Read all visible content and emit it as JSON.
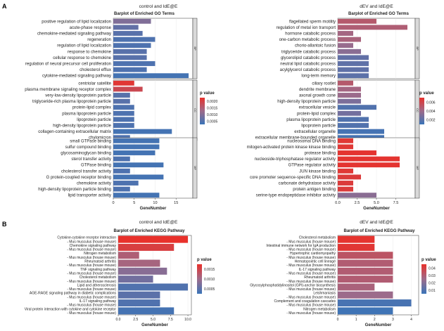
{
  "panel_letters": [
    "A",
    "B"
  ],
  "colors": {
    "low_p": "#3a74b8",
    "mid_p": "#9e6b8a",
    "high_p": "#e8312b",
    "strip": "#d9d9d9",
    "frame": "#333333"
  },
  "chart_data": [
    {
      "id": "go_control",
      "type": "bar",
      "group_title": "control and IdE@E",
      "title": "Barplot of Enriched GO Terms",
      "xlabel": "GeneNumber",
      "xlim": [
        0,
        19
      ],
      "xticks": [
        0,
        5,
        10,
        15
      ],
      "legend": {
        "title": "p value",
        "ticks": [
          "0.0020",
          "0.0015",
          "0.0010",
          "0.0005"
        ],
        "pmin": 0.0002,
        "pmax": 0.0022
      },
      "facets": [
        {
          "label": "BP",
          "terms": [
            {
              "name": "positive regulation of lipid localization",
              "count": 9,
              "p": 0.0009
            },
            {
              "name": "acute-phase response",
              "count": 6,
              "p": 0.0006
            },
            {
              "name": "chemokine-mediated signaling pathway",
              "count": 7,
              "p": 0.0005
            },
            {
              "name": "regeneration",
              "count": 10,
              "p": 0.0004
            },
            {
              "name": "regulation of lipid localization",
              "count": 9,
              "p": 0.0004
            },
            {
              "name": "response to chemokine",
              "count": 8,
              "p": 0.0005
            },
            {
              "name": "cellular response to chemokine",
              "count": 8,
              "p": 0.0005
            },
            {
              "name": "regulation of neural precursor cell proliferation",
              "count": 10,
              "p": 0.0004
            },
            {
              "name": "cholesterol efflux",
              "count": 8,
              "p": 0.0004
            },
            {
              "name": "cytokine-mediated signaling pathway",
              "count": 18,
              "p": 0.0003
            }
          ]
        },
        {
          "label": "CC",
          "terms": [
            {
              "name": "centriolar satellite",
              "count": 5,
              "p": 0.0021
            },
            {
              "name": "plasma membrane signaling receptor complex",
              "count": 7,
              "p": 0.0018
            },
            {
              "name": "very-low-density lipoprotein particle",
              "count": 4,
              "p": 0.0005
            },
            {
              "name": "triglyceride-rich plasma lipoprotein particle",
              "count": 4,
              "p": 0.0005
            },
            {
              "name": "protein-lipid complex",
              "count": 5,
              "p": 0.0004
            },
            {
              "name": "plasma lipoprotein particle",
              "count": 5,
              "p": 0.0004
            },
            {
              "name": "lipoprotein particle",
              "count": 5,
              "p": 0.0004
            },
            {
              "name": "high-density lipoprotein particle",
              "count": 5,
              "p": 0.0004
            },
            {
              "name": "collagen-containing extracellular matrix",
              "count": 14,
              "p": 0.0003
            },
            {
              "name": "chylomicron",
              "count": 4,
              "p": 0.0004
            }
          ]
        },
        {
          "label": "MF",
          "terms": [
            {
              "name": "small GTPase binding",
              "count": 11,
              "p": 0.0003
            },
            {
              "name": "sulfur compound binding",
              "count": 11,
              "p": 0.0003
            },
            {
              "name": "glycosaminoglycan binding",
              "count": 10,
              "p": 0.0003
            },
            {
              "name": "sterol transfer activity",
              "count": 4,
              "p": 0.0004
            },
            {
              "name": "GTPase binding",
              "count": 12,
              "p": 0.0003
            },
            {
              "name": "cholesterol transfer activity",
              "count": 4,
              "p": 0.0004
            },
            {
              "name": "G protein-coupled receptor binding",
              "count": 12,
              "p": 0.0003
            },
            {
              "name": "chemokine activity",
              "count": 6,
              "p": 0.0004
            },
            {
              "name": "high-density lipoprotein particle binding",
              "count": 4,
              "p": 0.0004
            },
            {
              "name": "lipid transporter activity",
              "count": 11,
              "p": 0.0003
            }
          ]
        }
      ]
    },
    {
      "id": "go_dev",
      "type": "bar",
      "group_title": "dEV and IdE@E",
      "title": "Barplot of Enriched GO Terms",
      "xlabel": "GeneNumber",
      "xlim": [
        0,
        10
      ],
      "xticks": [
        0.0,
        2.5,
        5.0,
        7.5
      ],
      "legend": {
        "title": "p value",
        "ticks": [
          "0.006",
          "0.004",
          "0.002"
        ],
        "pmin": 0.0002,
        "pmax": 0.0072
      },
      "facets": [
        {
          "label": "BP",
          "terms": [
            {
              "name": "flagellated sperm motility",
              "count": 5,
              "p": 0.0048
            },
            {
              "name": "regulation of metal ion transport",
              "count": 9,
              "p": 0.0045
            },
            {
              "name": "hormone catabolic process",
              "count": 2,
              "p": 0.004
            },
            {
              "name": "one-carbon metabolic process",
              "count": 3,
              "p": 0.0042
            },
            {
              "name": "chorio-allantoic fusion",
              "count": 2,
              "p": 0.0035
            },
            {
              "name": "triglyceride catabolic process",
              "count": 3,
              "p": 0.003
            },
            {
              "name": "glycerolipid catabolic process",
              "count": 4,
              "p": 0.0016
            },
            {
              "name": "neutral lipid catabolic process",
              "count": 4,
              "p": 0.0015
            },
            {
              "name": "acylglycerol catabolic process",
              "count": 4,
              "p": 0.0015
            },
            {
              "name": "long-term memory",
              "count": 4,
              "p": 0.0014
            }
          ]
        },
        {
          "label": "CC",
          "terms": [
            {
              "name": "ciliary rootlet",
              "count": 2,
              "p": 0.0048
            },
            {
              "name": "dendrite membrane",
              "count": 3,
              "p": 0.004
            },
            {
              "name": "axonal growth cone",
              "count": 3,
              "p": 0.0036
            },
            {
              "name": "high-density lipoprotein particle",
              "count": 3,
              "p": 0.0025
            },
            {
              "name": "extracellular vesicle",
              "count": 5,
              "p": 0.001
            },
            {
              "name": "protein-lipid complex",
              "count": 3,
              "p": 0.0022
            },
            {
              "name": "plasma lipoprotein particle",
              "count": 4,
              "p": 0.001
            },
            {
              "name": "lipoprotein particle",
              "count": 4,
              "p": 0.001
            },
            {
              "name": "extracellular organelle",
              "count": 6,
              "p": 0.0006
            },
            {
              "name": "extracellular membrane-bounded organelle",
              "count": 6,
              "p": 0.0006
            }
          ]
        },
        {
          "label": "MF",
          "terms": [
            {
              "name": "nucleosomal DNA binding",
              "count": 2,
              "p": 0.0068
            },
            {
              "name": "mitogen-activated protein kinase kinase binding",
              "count": 2,
              "p": 0.0068
            },
            {
              "name": "protease binding",
              "count": 5,
              "p": 0.007
            },
            {
              "name": "nucleoside-triphosphatase regulator activity",
              "count": 8,
              "p": 0.007
            },
            {
              "name": "GTPase regulator activity",
              "count": 8,
              "p": 0.007
            },
            {
              "name": "JUN kinase binding",
              "count": 2,
              "p": 0.0068
            },
            {
              "name": "core promoter sequence-specific DNA binding",
              "count": 3,
              "p": 0.0066
            },
            {
              "name": "carbonate dehydratase activity",
              "count": 2,
              "p": 0.0066
            },
            {
              "name": "protein antigen binding",
              "count": 2,
              "p": 0.0066
            },
            {
              "name": "serine-type endopeptidase inhibitor activity",
              "count": 5,
              "p": 0.003
            }
          ]
        }
      ]
    },
    {
      "id": "kegg_control",
      "type": "bar",
      "group_title": "control and IdE@E",
      "title": "Barplot of Enriched KEGG Pathway",
      "xlabel": "GeneNumber",
      "xlim": [
        0,
        10.5
      ],
      "xticks": [
        0.0,
        2.5,
        5.0,
        7.5,
        10.0
      ],
      "legend": {
        "title": "p value",
        "ticks": [
          "0.0015",
          "0.0010",
          "0.0005"
        ],
        "pmin": 0.0001,
        "pmax": 0.0019
      },
      "terms": [
        {
          "name": "Cytokine-cytokine receptor interaction",
          "count": 10,
          "p": 0.0019
        },
        {
          "name": "Chemokine signaling pathway",
          "count": 8,
          "p": 0.0017
        },
        {
          "name": "Nitrogen metabolism",
          "count": 3,
          "p": 0.0012
        },
        {
          "name": "Rheumatoid arthritis",
          "count": 6,
          "p": 0.0011
        },
        {
          "name": "TNF signaling pathway",
          "count": 7,
          "p": 0.0008
        },
        {
          "name": "Cholesterol metabolism",
          "count": 5,
          "p": 0.0006
        },
        {
          "name": "Lipid and atherosclerosis",
          "count": 10,
          "p": 0.0003
        },
        {
          "name": "AGE-RAGE signaling pathway in diabetic complications",
          "count": 6,
          "p": 0.0004
        },
        {
          "name": "IL-17 signaling pathway",
          "count": 6,
          "p": 0.0003
        },
        {
          "name": "Viral protein interaction with cytokine and cytokine receptor",
          "count": 8,
          "p": 0.0002
        }
      ],
      "tick_labels": [
        "Cytokine-cytokine receptor interaction",
        "- Mus musculus (house mouse)",
        "Chemokine signaling pathway",
        "- Mus musculus (house mouse)",
        "Nitrogen metabolism",
        "- Mus musculus (house mouse)",
        "Rheumatoid arthritis",
        "- Mus musculus (house mouse)",
        "TNF signaling pathway",
        "- Mus musculus (house mouse)",
        "Cholesterol metabolism",
        "- Mus musculus (house mouse)",
        "Lipid and atherosclerosis",
        "- Mus musculus (house mouse)",
        "AGE-RAGE signaling pathway in diabetic complications",
        "- Mus musculus (house mouse)",
        "IL-17 signaling pathway",
        "- Mus musculus (house mouse)",
        "Viral protein interaction with cytokine and cytokine receptor",
        "- Mus musculus (house mouse)"
      ]
    },
    {
      "id": "kegg_dev",
      "type": "bar",
      "group_title": "dEV and IdE@E",
      "title": "Barplot of Enriched KEGG Pathway",
      "xlabel": "GeneNumber",
      "xlim": [
        0,
        4.4
      ],
      "xticks": [
        0,
        1,
        2,
        3,
        4
      ],
      "legend": {
        "title": "p value",
        "ticks": [
          "0.04",
          "0.03",
          "0.02",
          "0.01"
        ],
        "pmin": 0.003,
        "pmax": 0.046
      },
      "terms": [
        {
          "name": "Cholesterol metabolism",
          "count": 2,
          "p": 0.045
        },
        {
          "name": "Intestinal immune network for IgA production",
          "count": 2,
          "p": 0.044
        },
        {
          "name": "Hypertrophic cardiomyopathy",
          "count": 3,
          "p": 0.033
        },
        {
          "name": "Hematopoietic cell lineage",
          "count": 3,
          "p": 0.03
        },
        {
          "name": "IL-17 signaling pathway",
          "count": 3,
          "p": 0.03
        },
        {
          "name": "Rheumatoid arthritis",
          "count": 3,
          "p": 0.03
        },
        {
          "name": "Glycosylphosphatidylinositol (GPI)-anchor biosynthesis",
          "count": 2,
          "p": 0.028
        },
        {
          "name": "Leishmaniasis",
          "count": 3,
          "p": 0.024
        },
        {
          "name": "Complement and coagulation cascades",
          "count": 4,
          "p": 0.006
        },
        {
          "name": "Nitrogen metabolism",
          "count": 3,
          "p": 0.004
        }
      ],
      "tick_labels": [
        "Cholesterol metabolism",
        "- Mus musculus (house mouse)",
        "Intestinal immune network for IgA production",
        "- Mus musculus (house mouse)",
        "Hypertrophic cardiomyopathy",
        "- Mus musculus (house mouse)",
        "Hematopoietic cell lineage",
        "- Mus musculus (house mouse)",
        "IL-17 signaling pathway",
        "- Mus musculus (house mouse)",
        "Rheumatoid arthritis",
        "- Mus musculus (house mouse)",
        "Glycosylphosphatidylinositol (GPI)-anchor biosynthesis",
        "- Mus musculus (house mouse)",
        "Leishmaniasis",
        "- Mus musculus (house mouse)",
        "Complement and coagulation cascades",
        "- Mus musculus (house mouse)",
        "Nitrogen metabolism",
        "- Mus musculus (house mouse)"
      ]
    }
  ]
}
